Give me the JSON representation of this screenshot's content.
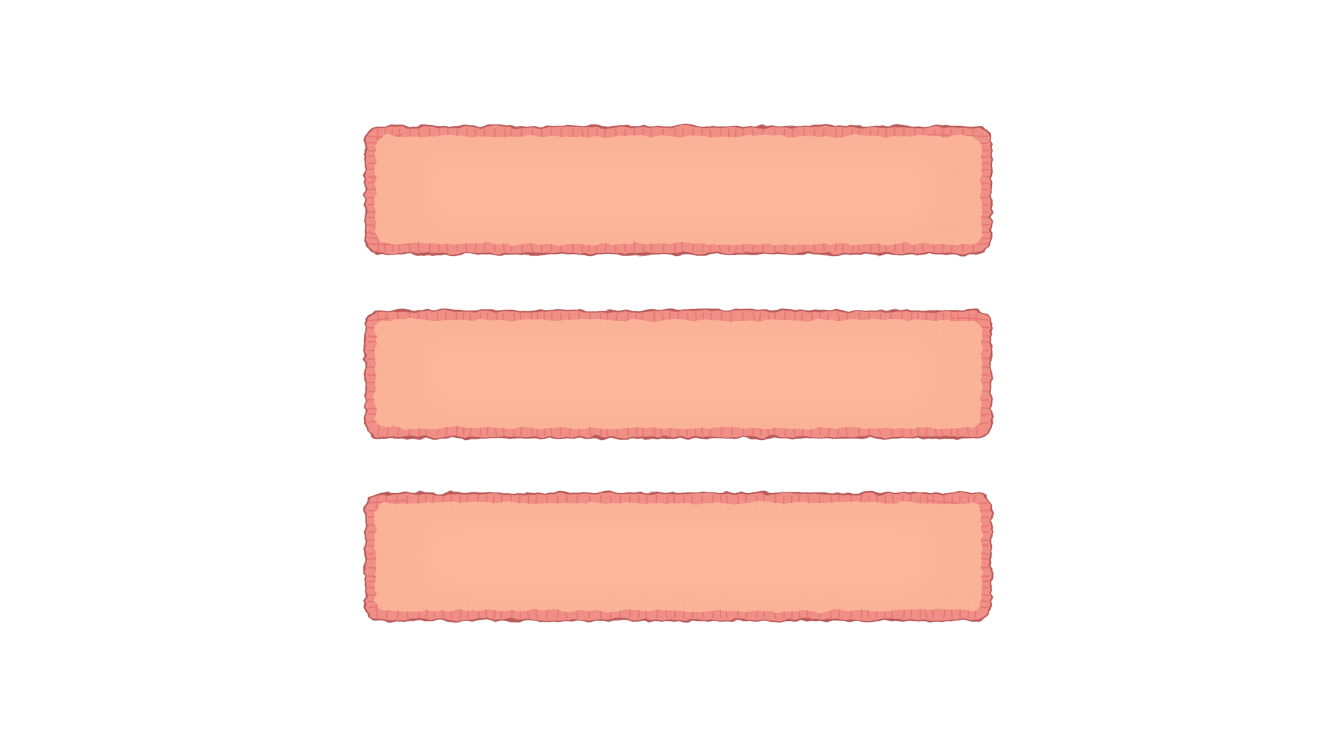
{
  "icon": {
    "name": "hamburger-menu-icon",
    "bar_count": 3,
    "colors": {
      "background": "#ffffff",
      "fill": "#fdb89b",
      "fill_light": "#ffc6ad",
      "edge": "#f08f86",
      "vein": "#e0646a",
      "outline": "#b85a5a"
    }
  }
}
